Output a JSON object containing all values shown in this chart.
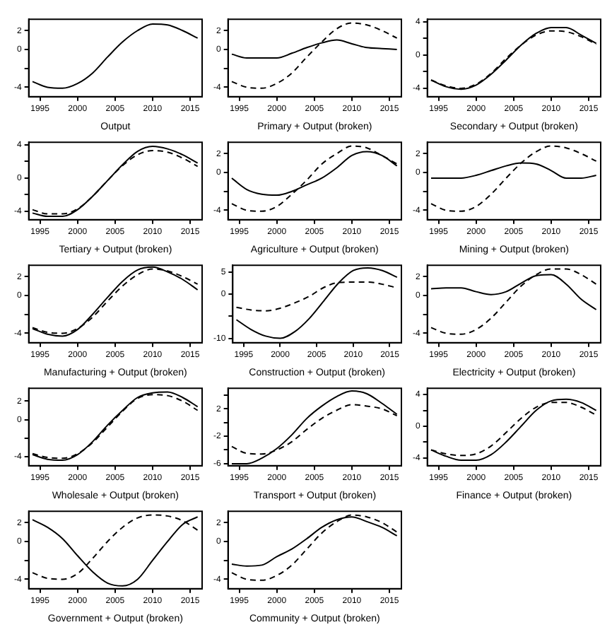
{
  "chart_data": [
    {
      "type": "line",
      "xlabel": "Output",
      "x": [
        1994,
        1996,
        1998,
        2000,
        2002,
        2004,
        2006,
        2008,
        2010,
        2012,
        2014,
        2016
      ],
      "xlim": [
        1993.5,
        2016.6
      ],
      "xticks": [
        1995,
        2000,
        2005,
        2010,
        2015
      ],
      "ylim": [
        -5,
        3.2
      ],
      "yticks": [
        -4,
        {
          "value": -2,
          "label": null
        },
        0,
        2
      ],
      "series": [
        {
          "color": "#000000",
          "line_style": "solid",
          "values": [
            -3.4,
            -4.0,
            -4.1,
            -3.6,
            -2.5,
            -0.8,
            0.8,
            2.0,
            2.7,
            2.6,
            2.0,
            1.2
          ]
        }
      ]
    },
    {
      "type": "line",
      "xlabel": "Primary + Output (broken)",
      "x": [
        1994,
        1996,
        1998,
        2000,
        2002,
        2004,
        2006,
        2008,
        2010,
        2012,
        2014,
        2016
      ],
      "xlim": [
        1993.5,
        2016.6
      ],
      "xticks": [
        1995,
        2000,
        2005,
        2010,
        2015
      ],
      "ylim": [
        -5,
        3.2
      ],
      "yticks": [
        -4,
        {
          "value": -2,
          "label": null
        },
        0,
        2
      ],
      "series": [
        {
          "color": "#000000",
          "line_style": "solid",
          "values": [
            -0.5,
            -0.9,
            -0.9,
            -0.9,
            -0.4,
            0.2,
            0.7,
            1.0,
            0.6,
            0.2,
            0.1,
            0.0
          ]
        },
        {
          "color": "#000000",
          "line_style": "dashed",
          "values": [
            -3.4,
            -4.0,
            -4.1,
            -3.6,
            -2.5,
            -0.8,
            0.8,
            2.2,
            2.8,
            2.6,
            2.0,
            1.2
          ]
        }
      ]
    },
    {
      "type": "line",
      "xlabel": "Secondary + Output (broken)",
      "x": [
        1994,
        1996,
        1998,
        2000,
        2002,
        2004,
        2006,
        2008,
        2010,
        2012,
        2014,
        2016
      ],
      "xlim": [
        1993.5,
        2016.6
      ],
      "xticks": [
        1995,
        2000,
        2005,
        2010,
        2015
      ],
      "ylim": [
        -5,
        4.3
      ],
      "yticks": [
        -4,
        {
          "value": -2,
          "label": null
        },
        0,
        {
          "value": 2,
          "label": null
        },
        4
      ],
      "series": [
        {
          "color": "#000000",
          "line_style": "solid",
          "values": [
            -3.0,
            -3.8,
            -4.1,
            -3.6,
            -2.3,
            -0.6,
            1.2,
            2.6,
            3.3,
            3.3,
            2.4,
            1.4
          ]
        },
        {
          "color": "#000000",
          "line_style": "dashed",
          "values": [
            -3.0,
            -3.7,
            -4.0,
            -3.5,
            -2.2,
            -0.4,
            1.2,
            2.4,
            2.9,
            2.8,
            2.2,
            1.3
          ]
        }
      ]
    },
    {
      "type": "line",
      "xlabel": "Tertiary + Output (broken)",
      "x": [
        1994,
        1996,
        1998,
        2000,
        2002,
        2004,
        2006,
        2008,
        2010,
        2012,
        2014,
        2016
      ],
      "xlim": [
        1993.5,
        2016.6
      ],
      "xticks": [
        1995,
        2000,
        2005,
        2010,
        2015
      ],
      "ylim": [
        -5,
        4.3
      ],
      "yticks": [
        -4,
        {
          "value": -2,
          "label": null
        },
        0,
        {
          "value": 2,
          "label": null
        },
        4
      ],
      "series": [
        {
          "color": "#000000",
          "line_style": "solid",
          "values": [
            -4.2,
            -4.6,
            -4.6,
            -3.8,
            -2.2,
            -0.3,
            1.6,
            3.2,
            3.8,
            3.5,
            2.8,
            1.8
          ]
        },
        {
          "color": "#000000",
          "line_style": "dashed",
          "values": [
            -3.8,
            -4.3,
            -4.3,
            -3.7,
            -2.2,
            -0.3,
            1.5,
            2.8,
            3.3,
            3.1,
            2.4,
            1.4
          ]
        }
      ]
    },
    {
      "type": "line",
      "xlabel": "Agriculture + Output (broken)",
      "x": [
        1994,
        1996,
        1998,
        2000,
        2002,
        2004,
        2006,
        2008,
        2010,
        2012,
        2014,
        2016
      ],
      "xlim": [
        1993.5,
        2016.6
      ],
      "xticks": [
        1995,
        2000,
        2005,
        2010,
        2015
      ],
      "ylim": [
        -5,
        3.2
      ],
      "yticks": [
        -4,
        {
          "value": -2,
          "label": null
        },
        0,
        2
      ],
      "series": [
        {
          "color": "#000000",
          "line_style": "solid",
          "values": [
            -0.6,
            -1.8,
            -2.3,
            -2.4,
            -2.0,
            -1.3,
            -0.6,
            0.5,
            1.8,
            2.2,
            1.8,
            0.7
          ]
        },
        {
          "color": "#000000",
          "line_style": "dashed",
          "values": [
            -3.3,
            -4.0,
            -4.1,
            -3.6,
            -2.3,
            -0.8,
            0.9,
            2.0,
            2.8,
            2.6,
            1.8,
            0.9
          ]
        }
      ]
    },
    {
      "type": "line",
      "xlabel": "Mining + Output (broken)",
      "x": [
        1994,
        1996,
        1998,
        2000,
        2002,
        2004,
        2006,
        2008,
        2010,
        2012,
        2014,
        2016
      ],
      "xlim": [
        1993.5,
        2016.6
      ],
      "xticks": [
        1995,
        2000,
        2005,
        2010,
        2015
      ],
      "ylim": [
        -5,
        3.2
      ],
      "yticks": [
        -4,
        {
          "value": -2,
          "label": null
        },
        0,
        2
      ],
      "series": [
        {
          "color": "#000000",
          "line_style": "solid",
          "values": [
            -0.6,
            -0.6,
            -0.6,
            -0.3,
            0.2,
            0.7,
            1.0,
            0.9,
            0.2,
            -0.6,
            -0.6,
            -0.3
          ]
        },
        {
          "color": "#000000",
          "line_style": "dashed",
          "values": [
            -3.3,
            -4.0,
            -4.1,
            -3.6,
            -2.3,
            -0.6,
            1.0,
            2.2,
            2.8,
            2.6,
            2.0,
            1.2
          ]
        }
      ]
    },
    {
      "type": "line",
      "xlabel": "Manufacturing + Output (broken)",
      "x": [
        1994,
        1996,
        1998,
        2000,
        2002,
        2004,
        2006,
        2008,
        2010,
        2012,
        2014,
        2016
      ],
      "xlim": [
        1993.5,
        2016.6
      ],
      "xticks": [
        1995,
        2000,
        2005,
        2010,
        2015
      ],
      "ylim": [
        -5,
        3.2
      ],
      "yticks": [
        -4,
        {
          "value": -2,
          "label": null
        },
        0,
        2
      ],
      "series": [
        {
          "color": "#000000",
          "line_style": "solid",
          "values": [
            -3.5,
            -4.1,
            -4.3,
            -3.6,
            -2.0,
            -0.2,
            1.5,
            2.7,
            3.0,
            2.5,
            1.7,
            0.6
          ]
        },
        {
          "color": "#000000",
          "line_style": "dashed",
          "values": [
            -3.4,
            -3.9,
            -4.0,
            -3.5,
            -2.3,
            -0.6,
            1.0,
            2.2,
            2.8,
            2.6,
            2.0,
            1.2
          ]
        }
      ]
    },
    {
      "type": "line",
      "xlabel": "Construction + Output (broken)",
      "x": [
        1994,
        1996,
        1998,
        2000,
        2002,
        2004,
        2006,
        2008,
        2010,
        2012,
        2014,
        2016
      ],
      "xlim": [
        1993.5,
        2016.6
      ],
      "xticks": [
        1995,
        2000,
        2005,
        2010,
        2015
      ],
      "ylim": [
        -11,
        6.5
      ],
      "yticks": [
        -10,
        {
          "value": -5,
          "label": null
        },
        0,
        5
      ],
      "series": [
        {
          "color": "#000000",
          "line_style": "solid",
          "values": [
            -5.8,
            -8.0,
            -9.5,
            -10,
            -8.5,
            -5.5,
            -1.5,
            2.5,
            5.3,
            5.9,
            5.3,
            3.8
          ]
        },
        {
          "color": "#000000",
          "line_style": "dashed",
          "values": [
            -3.0,
            -3.6,
            -3.8,
            -3.2,
            -2.0,
            -0.5,
            1.5,
            2.6,
            2.7,
            2.7,
            2.2,
            1.4
          ]
        }
      ]
    },
    {
      "type": "line",
      "xlabel": "Electricity + Output (broken)",
      "x": [
        1994,
        1996,
        1998,
        2000,
        2002,
        2004,
        2006,
        2008,
        2010,
        2012,
        2014,
        2016
      ],
      "xlim": [
        1993.5,
        2016.6
      ],
      "xticks": [
        1995,
        2000,
        2005,
        2010,
        2015
      ],
      "ylim": [
        -5,
        3.2
      ],
      "yticks": [
        -4,
        {
          "value": -2,
          "label": null
        },
        0,
        2
      ],
      "series": [
        {
          "color": "#000000",
          "line_style": "solid",
          "values": [
            0.7,
            0.8,
            0.8,
            0.4,
            0.1,
            0.4,
            1.3,
            2.1,
            2.2,
            1.2,
            -0.4,
            -1.5
          ]
        },
        {
          "color": "#000000",
          "line_style": "dashed",
          "values": [
            -3.4,
            -4.0,
            -4.1,
            -3.6,
            -2.4,
            -0.7,
            1.0,
            2.2,
            2.8,
            2.8,
            2.2,
            1.2
          ]
        }
      ]
    },
    {
      "type": "line",
      "xlabel": "Wholesale + Output (broken)",
      "x": [
        1994,
        1996,
        1998,
        2000,
        2002,
        2004,
        2006,
        2008,
        2010,
        2012,
        2014,
        2016
      ],
      "xlim": [
        1993.5,
        2016.6
      ],
      "xticks": [
        1995,
        2000,
        2005,
        2010,
        2015
      ],
      "ylim": [
        -5,
        3.4
      ],
      "yticks": [
        -4,
        {
          "value": -2,
          "label": null
        },
        0,
        2
      ],
      "series": [
        {
          "color": "#000000",
          "line_style": "solid",
          "values": [
            -3.8,
            -4.3,
            -4.4,
            -3.8,
            -2.4,
            -0.6,
            1.0,
            2.4,
            2.9,
            3.0,
            2.4,
            1.4
          ]
        },
        {
          "color": "#000000",
          "line_style": "dashed",
          "values": [
            -3.7,
            -4.1,
            -4.2,
            -3.7,
            -2.5,
            -0.8,
            0.9,
            2.3,
            2.7,
            2.6,
            2.0,
            1.0
          ]
        }
      ]
    },
    {
      "type": "line",
      "xlabel": "Transport + Output (broken)",
      "x": [
        1994,
        1996,
        1998,
        2000,
        2002,
        2004,
        2006,
        2008,
        2010,
        2012,
        2014,
        2016
      ],
      "xlim": [
        1993.5,
        2016.6
      ],
      "xticks": [
        1995,
        2000,
        2005,
        2010,
        2015
      ],
      "ylim": [
        -6.3,
        5
      ],
      "yticks": [
        -6,
        {
          "value": -4,
          "label": null
        },
        -2,
        {
          "value": 0,
          "label": null
        },
        2,
        {
          "value": 4,
          "label": null
        }
      ],
      "series": [
        {
          "color": "#000000",
          "line_style": "solid",
          "values": [
            -6.0,
            -6.0,
            -5.2,
            -3.8,
            -1.8,
            0.6,
            2.4,
            3.8,
            4.6,
            4.2,
            2.8,
            1.2
          ]
        },
        {
          "color": "#000000",
          "line_style": "dashed",
          "values": [
            -3.5,
            -4.5,
            -4.6,
            -4.0,
            -2.8,
            -1.0,
            0.6,
            1.8,
            2.6,
            2.4,
            2.0,
            1.0
          ]
        }
      ]
    },
    {
      "type": "line",
      "xlabel": "Finance + Output (broken)",
      "x": [
        1994,
        1996,
        1998,
        2000,
        2002,
        2004,
        2006,
        2008,
        2010,
        2012,
        2014,
        2016
      ],
      "xlim": [
        1993.5,
        2016.6
      ],
      "xticks": [
        1995,
        2000,
        2005,
        2010,
        2015
      ],
      "ylim": [
        -5,
        4.8
      ],
      "yticks": [
        -4,
        {
          "value": -2,
          "label": null
        },
        0,
        {
          "value": 2,
          "label": null
        },
        4
      ],
      "series": [
        {
          "color": "#000000",
          "line_style": "solid",
          "values": [
            -3.0,
            -3.8,
            -4.3,
            -4.3,
            -3.6,
            -2.0,
            0.0,
            2.0,
            3.2,
            3.4,
            3.0,
            2.0
          ]
        },
        {
          "color": "#000000",
          "line_style": "dashed",
          "values": [
            -3.0,
            -3.5,
            -3.7,
            -3.5,
            -2.5,
            -0.8,
            1.0,
            2.4,
            3.0,
            3.0,
            2.4,
            1.4
          ]
        }
      ]
    },
    {
      "type": "line",
      "xlabel": "Government + Output (broken)",
      "x": [
        1994,
        1996,
        1998,
        2000,
        2002,
        2004,
        2006,
        2008,
        2010,
        2012,
        2014,
        2016
      ],
      "xlim": [
        1993.5,
        2016.6
      ],
      "xticks": [
        1995,
        2000,
        2005,
        2010,
        2015
      ],
      "ylim": [
        -5,
        3.2
      ],
      "yticks": [
        -4,
        {
          "value": -2,
          "label": null
        },
        0,
        2
      ],
      "series": [
        {
          "color": "#000000",
          "line_style": "solid",
          "values": [
            2.3,
            1.5,
            0.3,
            -1.5,
            -3.2,
            -4.4,
            -4.7,
            -4.0,
            -2.0,
            0.0,
            1.8,
            2.6
          ]
        },
        {
          "color": "#000000",
          "line_style": "dashed",
          "values": [
            -3.3,
            -3.9,
            -4.0,
            -3.4,
            -1.8,
            0.0,
            1.5,
            2.5,
            2.8,
            2.7,
            2.2,
            1.2
          ]
        }
      ]
    },
    {
      "type": "line",
      "xlabel": "Community + Output (broken)",
      "x": [
        1994,
        1996,
        1998,
        2000,
        2002,
        2004,
        2006,
        2008,
        2010,
        2012,
        2014,
        2016
      ],
      "xlim": [
        1993.5,
        2016.6
      ],
      "xticks": [
        1995,
        2000,
        2005,
        2010,
        2015
      ],
      "ylim": [
        -5,
        3.2
      ],
      "yticks": [
        -4,
        {
          "value": -2,
          "label": null
        },
        0,
        2
      ],
      "series": [
        {
          "color": "#000000",
          "line_style": "solid",
          "values": [
            -2.4,
            -2.6,
            -2.5,
            -1.6,
            -0.8,
            0.3,
            1.5,
            2.3,
            2.6,
            2.1,
            1.5,
            0.6
          ]
        },
        {
          "color": "#000000",
          "line_style": "dashed",
          "values": [
            -3.3,
            -4.0,
            -4.1,
            -3.6,
            -2.5,
            -0.8,
            0.9,
            2.1,
            2.8,
            2.6,
            2.0,
            1.0
          ]
        }
      ]
    }
  ]
}
